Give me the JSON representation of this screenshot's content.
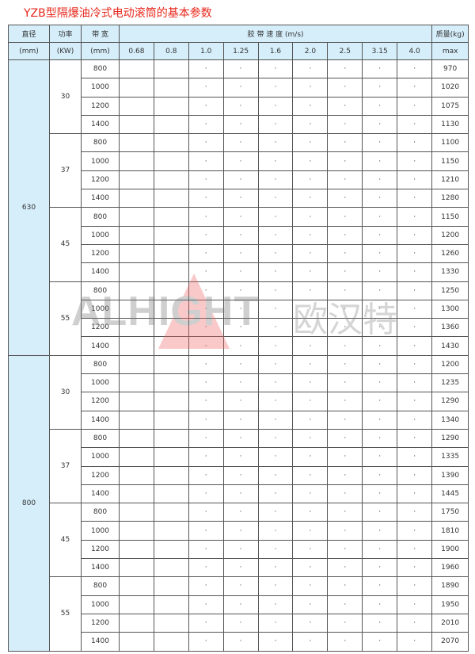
{
  "title": "YZB型隔爆油冷式电动滚筒的基本参数",
  "headers": {
    "diameter": "直径",
    "diameter_unit": "(mm)",
    "power": "功率",
    "power_unit": "(KW)",
    "width": "带 宽",
    "width_unit": "(mm)",
    "speed": "胶 带 速 度 (m/s)",
    "mass": "质量(kg)",
    "mass_unit": "max"
  },
  "speeds": [
    "0.68",
    "0.8",
    "1.0",
    "1.25",
    "1.6",
    "2.0",
    "2.5",
    "3.15",
    "4.0"
  ],
  "available_speeds": [
    "1.0",
    "1.25",
    "1.6",
    "2.0",
    "2.5",
    "3.15",
    "4.0"
  ],
  "mark": "·",
  "watermark": {
    "logo": "ALHIGHT",
    "cn": "欧汉特",
    "color": "#e66666"
  },
  "groups": [
    {
      "diameter": "630",
      "powers": [
        {
          "power": "30",
          "rows": [
            [
              "800",
              "970"
            ],
            [
              "1000",
              "1020"
            ],
            [
              "1200",
              "1075"
            ],
            [
              "1400",
              "1130"
            ]
          ]
        },
        {
          "power": "37",
          "rows": [
            [
              "800",
              "1100"
            ],
            [
              "1000",
              "1150"
            ],
            [
              "1200",
              "1210"
            ],
            [
              "1400",
              "1280"
            ]
          ]
        },
        {
          "power": "45",
          "rows": [
            [
              "800",
              "1150"
            ],
            [
              "1000",
              "1200"
            ],
            [
              "1200",
              "1260"
            ],
            [
              "1400",
              "1330"
            ]
          ]
        },
        {
          "power": "55",
          "rows": [
            [
              "800",
              "1250"
            ],
            [
              "1000",
              "1300"
            ],
            [
              "1200",
              "1360"
            ],
            [
              "1400",
              "1430"
            ]
          ]
        }
      ]
    },
    {
      "diameter": "800",
      "powers": [
        {
          "power": "30",
          "rows": [
            [
              "800",
              "1200"
            ],
            [
              "1000",
              "1235"
            ],
            [
              "1200",
              "1290"
            ],
            [
              "1400",
              "1340"
            ]
          ]
        },
        {
          "power": "37",
          "rows": [
            [
              "800",
              "1290"
            ],
            [
              "1000",
              "1335"
            ],
            [
              "1200",
              "1390"
            ],
            [
              "1400",
              "1445"
            ]
          ]
        },
        {
          "power": "45",
          "rows": [
            [
              "800",
              "1750"
            ],
            [
              "1000",
              "1810"
            ],
            [
              "1200",
              "1900"
            ],
            [
              "1400",
              "1960"
            ]
          ]
        },
        {
          "power": "55",
          "rows": [
            [
              "800",
              "1890"
            ],
            [
              "1000",
              "1950"
            ],
            [
              "1200",
              "2010"
            ],
            [
              "1400",
              "2070"
            ]
          ]
        }
      ]
    }
  ]
}
